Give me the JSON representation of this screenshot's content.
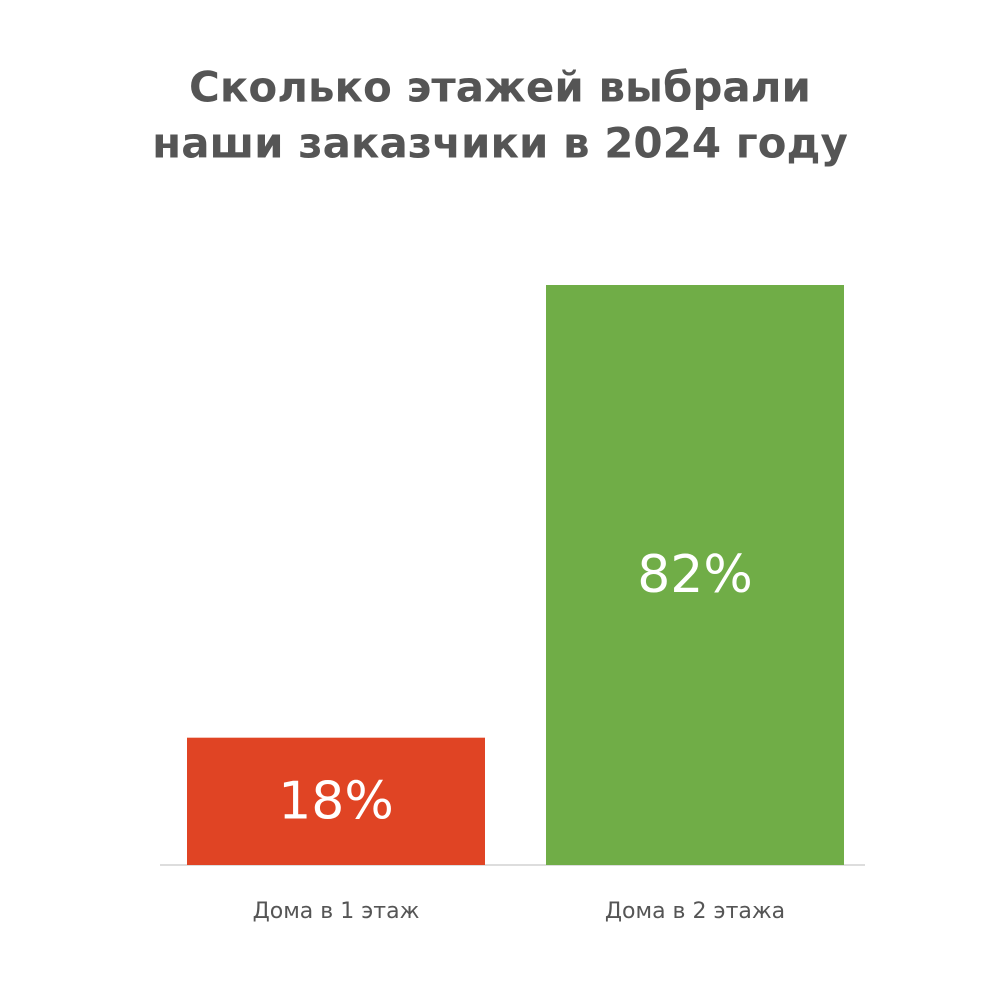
{
  "chart_data": {
    "type": "bar",
    "title": [
      "Сколько этажей выбрали",
      "наши заказчики в 2024 году"
    ],
    "categories": [
      "Дома в 1 этаж",
      "Дома в 2 этажа"
    ],
    "values": [
      18,
      82
    ],
    "value_labels": [
      "18%",
      "82%"
    ],
    "colors": [
      "#e04424",
      "#70ad47"
    ]
  }
}
